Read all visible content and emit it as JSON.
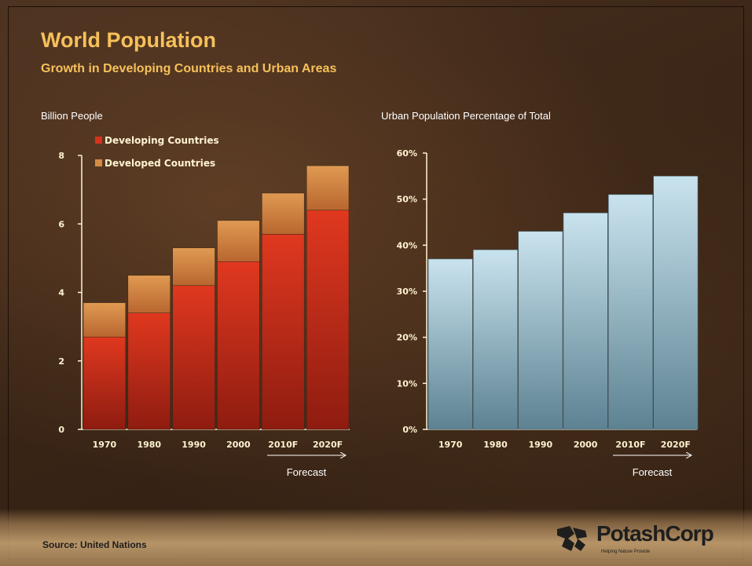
{
  "title": "World Population",
  "subtitle": "Growth in Developing Countries and Urban Areas",
  "left_panel_label": "Billion People",
  "right_panel_label": "Urban Population Percentage of Total",
  "forecast_label": "Forecast",
  "source": "Source: United Nations",
  "logo": {
    "name": "PotashCorp",
    "tagline": "Helping Nature Provide"
  },
  "colors": {
    "title": "#f6c15a",
    "developing": "#d8321e",
    "developed": "#d58a45",
    "urban": "#bcd8e6"
  },
  "chart_data": [
    {
      "type": "bar",
      "stacked": true,
      "categories": [
        "1970",
        "1980",
        "1990",
        "2000",
        "2010F",
        "2020F"
      ],
      "series": [
        {
          "name": "Developing Countries",
          "values": [
            2.7,
            3.4,
            4.2,
            4.9,
            5.7,
            6.4
          ]
        },
        {
          "name": "Developed Countries",
          "values": [
            1.0,
            1.1,
            1.1,
            1.2,
            1.2,
            1.3
          ]
        }
      ],
      "ylim": [
        0,
        8
      ],
      "yticks": [
        "0",
        "2",
        "4",
        "6",
        "8"
      ],
      "ylabel": "Billion People",
      "legend": "top-left"
    },
    {
      "type": "bar",
      "categories": [
        "1970",
        "1980",
        "1990",
        "2000",
        "2010F",
        "2020F"
      ],
      "values": [
        37,
        39,
        43,
        47,
        51,
        55
      ],
      "ylim": [
        0,
        60
      ],
      "yticks": [
        "0%",
        "10%",
        "20%",
        "30%",
        "40%",
        "50%",
        "60%"
      ],
      "ylabel": "Urban Population Percentage of Total"
    }
  ]
}
